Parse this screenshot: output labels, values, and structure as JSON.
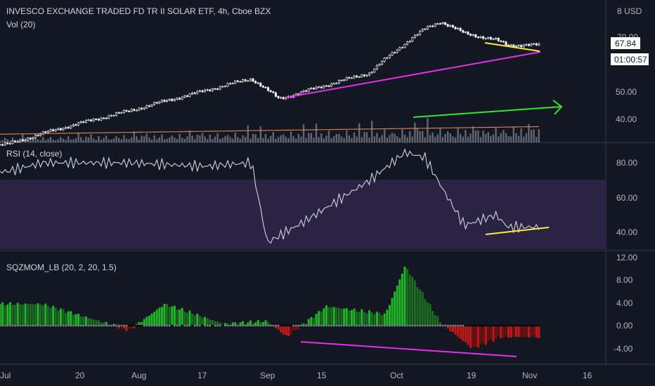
{
  "colors": {
    "background": "#131722",
    "text": "#d1d4dc",
    "axis_text": "#b2b5be",
    "divider": "#363a45",
    "candle": "#ffffff",
    "volume": "#787b86",
    "volume_ma": "#d27d4b",
    "rsi_line": "#d1d4dc",
    "rsi_band": "#2a2343",
    "trend_magenta": "#e62ee6",
    "trend_yellow": "#ffeb3b",
    "trend_green": "#33e633",
    "sqz_green_bright": "#21b528",
    "sqz_green_dark": "#1b6b21",
    "sqz_red_bright": "#c41919",
    "sqz_red_dark": "#6e1111",
    "sqz_dot_gray": "#808080",
    "sqz_dot_black": "#000000"
  },
  "price_pane": {
    "title": "INVESCO EXCHANGE TRADED FD TR II SOLAR ETF, 4h, Cboe BZX",
    "volume_label": "Vol (20)",
    "currency_label": "8 USD",
    "y_ticks": [
      "70.00",
      "50.00",
      "40.00"
    ],
    "last_price": "67.84",
    "countdown": "01:00:57"
  },
  "rsi_pane": {
    "title": "RSI (14, close)",
    "y_ticks": [
      "80.00",
      "60.00",
      "40.00"
    ]
  },
  "sqz_pane": {
    "title": "SQZMOM_LB (20, 2, 20, 1.5)",
    "y_ticks": [
      "12.00",
      "8.00",
      "4.00",
      "0.00",
      "-4.00"
    ]
  },
  "x_axis": {
    "ticks": [
      "Jul",
      "20",
      "Aug",
      "17",
      "Sep",
      "15",
      "Oct",
      "19",
      "Nov",
      "16"
    ]
  },
  "chart_data": [
    {
      "type": "line",
      "name": "price",
      "x": [
        "2020-07-01",
        "2020-07-15",
        "2020-08-01",
        "2020-08-17",
        "2020-09-01",
        "2020-09-08",
        "2020-09-15",
        "2020-10-01",
        "2020-10-15",
        "2020-10-19",
        "2020-10-25",
        "2020-11-02",
        "2020-11-05"
      ],
      "y": [
        36.5,
        40.5,
        45,
        50,
        55,
        48.5,
        51,
        57,
        75,
        78.5,
        73,
        70,
        67.84
      ]
    },
    {
      "type": "line",
      "name": "RSI (14, close)",
      "x": [
        "2020-07-01",
        "2020-07-10",
        "2020-08-01",
        "2020-08-20",
        "2020-09-01",
        "2020-09-05",
        "2020-09-15",
        "2020-10-01",
        "2020-10-10",
        "2020-10-15",
        "2020-10-20",
        "2020-10-25",
        "2020-11-02",
        "2020-11-05"
      ],
      "y": [
        75,
        80,
        80,
        78,
        80,
        34,
        47,
        70,
        86,
        83,
        63,
        44,
        50,
        43
      ]
    },
    {
      "type": "bar",
      "name": "SQZMOM_LB (20, 2, 20, 1.5)",
      "x": [
        "2020-07-10",
        "2020-08-01",
        "2020-08-10",
        "2020-08-25",
        "2020-09-05",
        "2020-09-10",
        "2020-09-20",
        "2020-10-05",
        "2020-10-10",
        "2020-10-19",
        "2020-10-27",
        "2020-11-03"
      ],
      "y": [
        3.8,
        -0.8,
        3.8,
        0.3,
        0.8,
        -2.0,
        3.4,
        2.0,
        10.5,
        0.5,
        -4.0,
        -2.0
      ]
    }
  ]
}
